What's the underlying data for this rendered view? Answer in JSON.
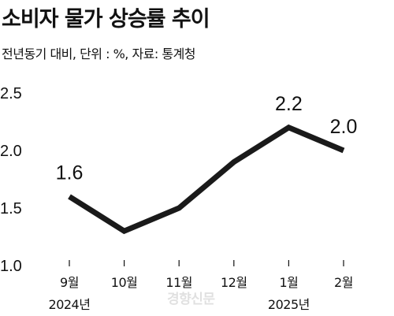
{
  "header": {
    "title": "소비자 물가 상승률 추이",
    "subtitle": "전년동기 대비, 단위 : %, 자료: 통계청"
  },
  "watermark": {
    "text": "경향신문"
  },
  "chart_data": {
    "type": "line",
    "title": "소비자 물가 상승률 추이",
    "subtitle": "전년동기 대비, 단위 : %, 자료: 통계청",
    "categories": [
      "9월",
      "10월",
      "11월",
      "12월",
      "1월",
      "2월"
    ],
    "values": [
      1.6,
      1.3,
      1.5,
      1.9,
      2.2,
      2.0
    ],
    "data_labels": [
      {
        "index": 0,
        "text": "1.6"
      },
      {
        "index": 4,
        "text": "2.2"
      },
      {
        "index": 5,
        "text": "2.0"
      }
    ],
    "year_labels": [
      {
        "index": 0,
        "text": "2024년"
      },
      {
        "index": 4,
        "text": "2025년"
      }
    ],
    "yticks": [
      "1.0",
      "1.5",
      "2.0",
      "2.5"
    ],
    "ytick_values": [
      1.0,
      1.5,
      2.0,
      2.5
    ],
    "ylim": [
      1.0,
      2.5
    ],
    "xlabel": "",
    "ylabel": "",
    "grid": false,
    "legend": "none",
    "line_color": "#1a1a1a",
    "axis_color": "#111111"
  }
}
